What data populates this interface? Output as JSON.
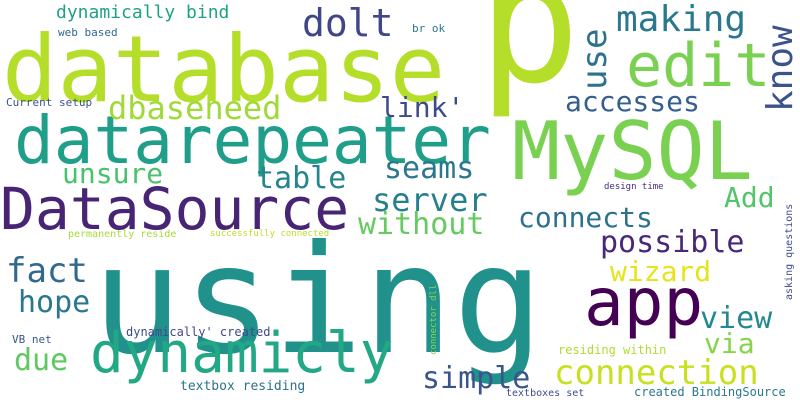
{
  "words": [
    {
      "text": "p",
      "color": "#b5de2b"
    },
    {
      "text": "using",
      "color": "#21918c"
    },
    {
      "text": "database",
      "color": "#b5de2b"
    },
    {
      "text": "MySQL",
      "color": "#7ad151"
    },
    {
      "text": "datarepeater",
      "color": "#1f9e89"
    },
    {
      "text": "DataSource",
      "color": "#482475"
    },
    {
      "text": "dynamicly",
      "color": "#22a884"
    },
    {
      "text": "app",
      "color": "#440154"
    },
    {
      "text": "edit",
      "color": "#7ad151"
    },
    {
      "text": "know",
      "color": "#3b528b"
    },
    {
      "text": "dolt",
      "color": "#404688"
    },
    {
      "text": "making",
      "color": "#2a788e"
    },
    {
      "text": "use",
      "color": "#2c728e"
    },
    {
      "text": "accesses",
      "color": "#355f8d"
    },
    {
      "text": "dbaseneed",
      "color": "#a0da39"
    },
    {
      "text": "link'",
      "color": "#3e4a89"
    },
    {
      "text": "seams",
      "color": "#2a788e"
    },
    {
      "text": "table",
      "color": "#25848e"
    },
    {
      "text": "unsure",
      "color": "#4ac16d"
    },
    {
      "text": "server",
      "color": "#277f8e"
    },
    {
      "text": "Add",
      "color": "#52c569"
    },
    {
      "text": "without",
      "color": "#65cb5e"
    },
    {
      "text": "connects",
      "color": "#2c728e"
    },
    {
      "text": "possible",
      "color": "#482878"
    },
    {
      "text": "fact",
      "color": "#31688e"
    },
    {
      "text": "wizard",
      "color": "#e5e419"
    },
    {
      "text": "hope",
      "color": "#2a788e"
    },
    {
      "text": "view",
      "color": "#23898e"
    },
    {
      "text": "via",
      "color": "#86d549"
    },
    {
      "text": "due",
      "color": "#5ec962"
    },
    {
      "text": "simple",
      "color": "#39568c"
    },
    {
      "text": "connection",
      "color": "#c8e020"
    },
    {
      "text": "dynamically bind",
      "color": "#1fa187"
    },
    {
      "text": "web based",
      "color": "#31688e"
    },
    {
      "text": "br ok",
      "color": "#2a788e"
    },
    {
      "text": "Current setup",
      "color": "#3b528b"
    },
    {
      "text": "permanently reside",
      "color": "#a5db36"
    },
    {
      "text": "successfully connected",
      "color": "#bddf26"
    },
    {
      "text": "design time",
      "color": "#472c7a"
    },
    {
      "text": "asking questions",
      "color": "#3e4a89"
    },
    {
      "text": "connector dll",
      "color": "#86d549"
    },
    {
      "text": "VB net",
      "color": "#39568c"
    },
    {
      "text": "dynamically' created",
      "color": "#3e4a89"
    },
    {
      "text": "residing within",
      "color": "#addc30"
    },
    {
      "text": "textbox residing",
      "color": "#2c728e"
    },
    {
      "text": "textboxes set",
      "color": "#3e4a89"
    },
    {
      "text": "created BindingSource",
      "color": "#2a788e"
    }
  ]
}
